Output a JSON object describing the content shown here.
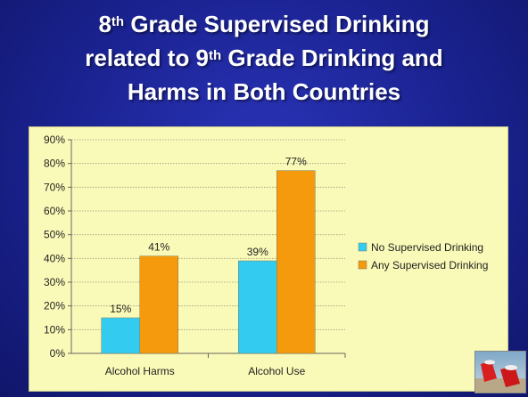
{
  "slide": {
    "title_line1_pre": "8",
    "title_line1_sup": "th",
    "title_line1_post": " Grade Supervised Drinking",
    "title_line2_pre": "related to 9",
    "title_line2_sup": "th",
    "title_line2_post": " Grade Drinking and",
    "title_line3": "Harms in Both Countries"
  },
  "colors": {
    "background": "#1a2290",
    "panel": "#fafab8",
    "series_no": "#33ccf0",
    "series_any": "#f59a0c"
  },
  "chart_data": {
    "type": "bar",
    "categories": [
      "Alcohol Harms",
      "Alcohol Use"
    ],
    "series": [
      {
        "name": "No Supervised Drinking",
        "values": [
          15,
          39
        ],
        "labels": [
          "15%",
          "39%"
        ],
        "color": "#33ccf0"
      },
      {
        "name": "Any Supervised Drinking",
        "values": [
          41,
          77
        ],
        "labels": [
          "41%",
          "77%"
        ],
        "color": "#f59a0c"
      }
    ],
    "ylim": [
      0,
      90
    ],
    "yticks": [
      "0%",
      "10%",
      "20%",
      "30%",
      "40%",
      "50%",
      "60%",
      "70%",
      "80%",
      "90%"
    ],
    "grid": true,
    "legend_position": "right",
    "title": "",
    "xlabel": "",
    "ylabel": ""
  }
}
